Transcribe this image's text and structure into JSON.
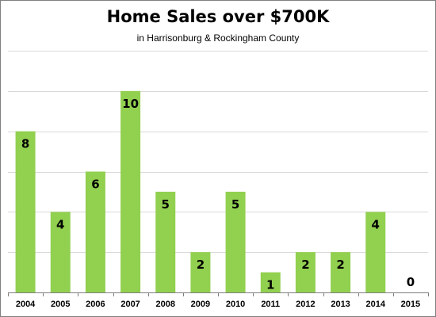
{
  "chart_data": {
    "type": "bar",
    "title": "Home Sales over $700K",
    "subtitle": "in Harrisonburg & Rockingham County",
    "xlabel": "",
    "ylabel": "",
    "categories": [
      "2004",
      "2005",
      "2006",
      "2007",
      "2008",
      "2009",
      "2010",
      "2011",
      "2012",
      "2013",
      "2014",
      "2015"
    ],
    "values": [
      8,
      4,
      6,
      10,
      5,
      2,
      5,
      1,
      2,
      2,
      4,
      0
    ],
    "data_labels": [
      "8",
      "4",
      "6",
      "10",
      "5",
      "2",
      "5",
      "1",
      "2",
      "2",
      "4",
      "0"
    ],
    "ylim": [
      0,
      12
    ],
    "y_gridline_step": 2,
    "grid": true,
    "y_tick_labels_shown": false,
    "legend": "none",
    "bar_color": "#92d050",
    "gridline_color": "#d9d9d9",
    "axis_color": "#7f7f7f",
    "label_color": "#000000"
  }
}
